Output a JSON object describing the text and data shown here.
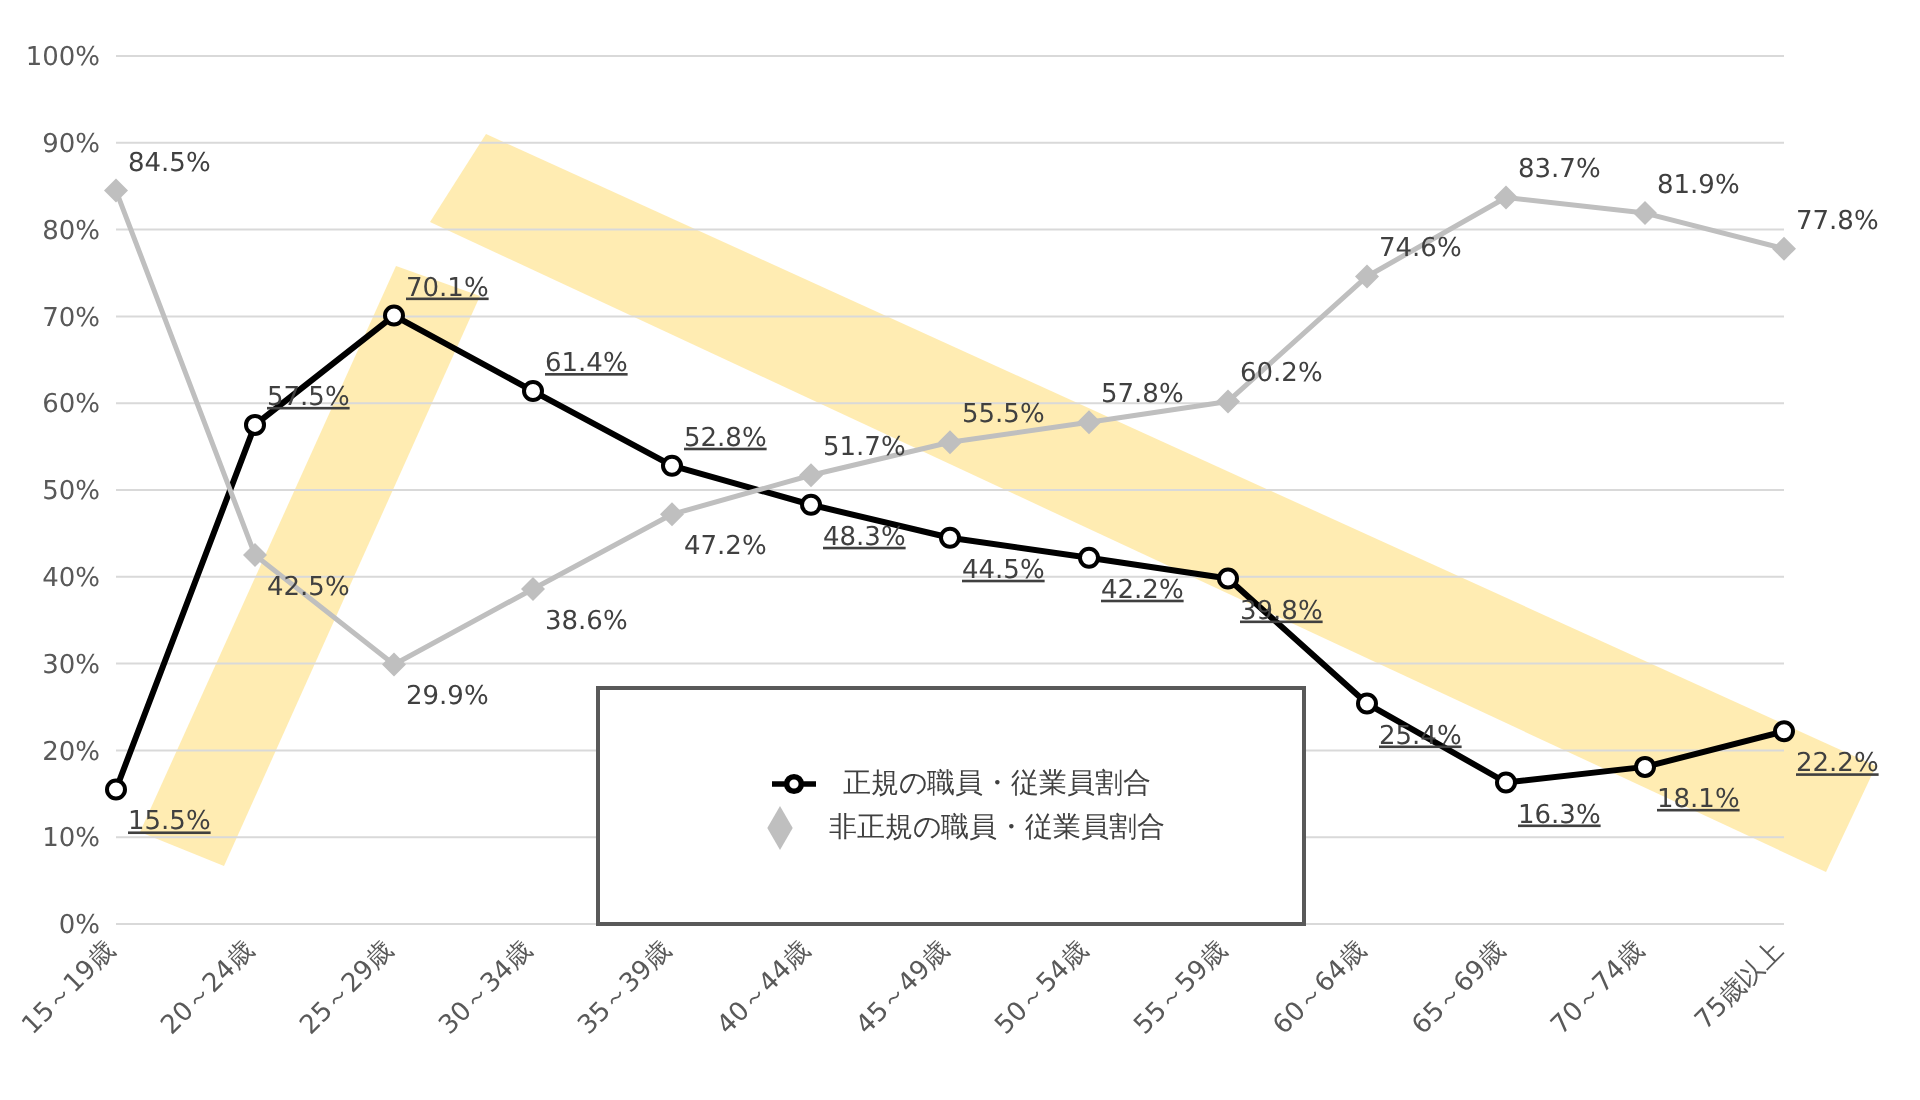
{
  "chart_data": {
    "type": "line",
    "categories": [
      "15～19歳",
      "20～24歳",
      "25～29歳",
      "30～34歳",
      "35～39歳",
      "40～44歳",
      "45～49歳",
      "50～54歳",
      "55～59歳",
      "60～64歳",
      "65～69歳",
      "70～74歳",
      "75歳以上"
    ],
    "series": [
      {
        "name": "正規の職員・従業員割合",
        "color": "#000000",
        "marker": "circle",
        "values": [
          15.5,
          57.5,
          70.1,
          61.4,
          52.8,
          48.3,
          44.5,
          42.2,
          39.8,
          25.4,
          16.3,
          18.1,
          22.2
        ],
        "value_labels": [
          "15.5%",
          "57.5%",
          "70.1%",
          "61.4%",
          "52.8%",
          "48.3%",
          "44.5%",
          "42.2%",
          "39.8%",
          "25.4%",
          "16.3%",
          "18.1%",
          "22.2%"
        ]
      },
      {
        "name": "非正規の職員・従業員割合",
        "color": "#bfbfbf",
        "marker": "diamond",
        "values": [
          84.5,
          42.5,
          29.9,
          38.6,
          47.2,
          51.7,
          55.5,
          57.8,
          60.2,
          74.6,
          83.7,
          81.9,
          77.8
        ],
        "value_labels": [
          "84.5%",
          "42.5%",
          "29.9%",
          "38.6%",
          "47.2%",
          "51.7%",
          "55.5%",
          "57.8%",
          "60.2%",
          "74.6%",
          "83.7%",
          "81.9%",
          "77.8%"
        ]
      }
    ],
    "ylim": [
      0,
      100
    ],
    "yticks": [
      {
        "value": 0,
        "label": "0%"
      },
      {
        "value": 10,
        "label": "10%"
      },
      {
        "value": 20,
        "label": "20%"
      },
      {
        "value": 30,
        "label": "30%"
      },
      {
        "value": 40,
        "label": "40%"
      },
      {
        "value": 50,
        "label": "50%"
      },
      {
        "value": 60,
        "label": "60%"
      },
      {
        "value": 70,
        "label": "70%"
      },
      {
        "value": 80,
        "label": "80%"
      },
      {
        "value": 90,
        "label": "90%"
      },
      {
        "value": 100,
        "label": "100%"
      }
    ],
    "grid": "y",
    "legend": "bottom",
    "line_style": "solid"
  }
}
